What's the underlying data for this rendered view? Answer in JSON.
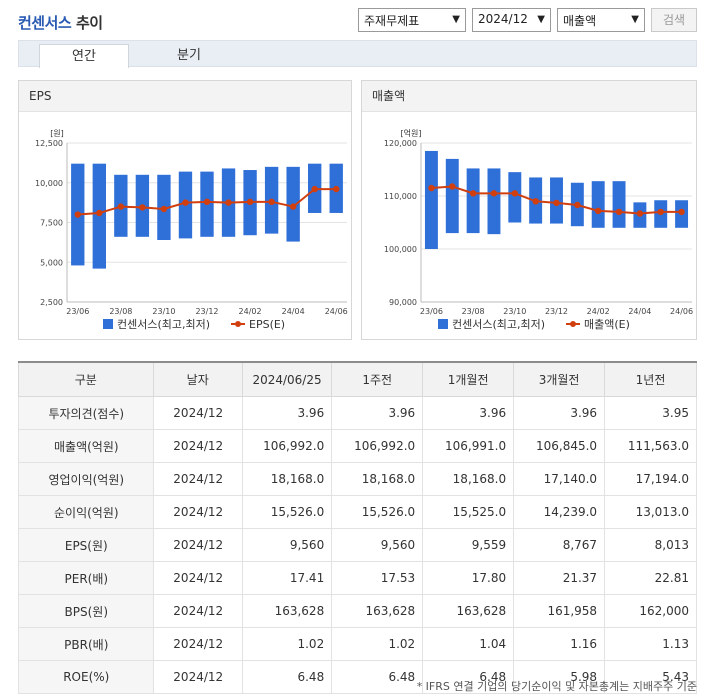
{
  "header": {
    "title_main": "컨센서스",
    "title_sub": "추이",
    "select_type": "주재무제표",
    "select_period": "2024/12",
    "select_metric": "매출액",
    "search_label": "검색"
  },
  "tabs": [
    {
      "label": "연간"
    },
    {
      "label": "분기"
    }
  ],
  "colors": {
    "bar": "#2f6fd8",
    "line": "#d23f0f",
    "accent": "#2a5bb3"
  },
  "charts": [
    {
      "panel_title": "EPS",
      "unit": "[원]",
      "chart_data": {
        "type": "bar",
        "title": "",
        "ylim": [
          2500,
          12500
        ],
        "yticks": [
          "12,500",
          "10,000",
          "7,500",
          "5,000",
          "2,500"
        ],
        "ytick_values": [
          12500,
          10000,
          7500,
          5000,
          2500
        ],
        "xlabels": [
          "23/06",
          "23/08",
          "23/10",
          "23/12",
          "24/02",
          "24/04",
          "24/06"
        ],
        "series": [
          {
            "name": "컨센서스(최고,최저)",
            "type": "range_bar",
            "high": [
              11200,
              11200,
              10500,
              10500,
              10500,
              10700,
              10700,
              10900,
              10800,
              11000,
              11000,
              11200,
              11200
            ],
            "low": [
              4800,
              4600,
              6600,
              6600,
              6400,
              6500,
              6600,
              6600,
              6700,
              6800,
              6300,
              8100,
              8100
            ]
          },
          {
            "name": "EPS(E)",
            "type": "line",
            "values": [
              8000,
              8100,
              8500,
              8450,
              8350,
              8750,
              8800,
              8750,
              8800,
              8800,
              8500,
              9600,
              9600
            ]
          }
        ],
        "legend": "bottom"
      }
    },
    {
      "panel_title": "매출액",
      "unit": "[억원]",
      "chart_data": {
        "type": "bar",
        "title": "",
        "ylim": [
          90000,
          120000
        ],
        "yticks": [
          "120,000",
          "110,000",
          "100,000",
          "90,000"
        ],
        "ytick_values": [
          120000,
          110000,
          100000,
          90000
        ],
        "xlabels": [
          "23/06",
          "23/08",
          "23/10",
          "23/12",
          "24/02",
          "24/04",
          "24/06"
        ],
        "series": [
          {
            "name": "컨센서스(최고,최저)",
            "type": "range_bar",
            "high": [
              118500,
              117000,
              115200,
              115200,
              114500,
              113500,
              113500,
              112500,
              112800,
              112800,
              108800,
              109200,
              109200
            ],
            "low": [
              100000,
              103000,
              103000,
              102800,
              105000,
              104800,
              104800,
              104300,
              104000,
              104000,
              104000,
              104000,
              104000
            ],
            "x": [
              0,
              1,
              2,
              3,
              4,
              5,
              6,
              7,
              8,
              9,
              10,
              11,
              12
            ]
          },
          {
            "name": "매출액(E)",
            "type": "line",
            "values": [
              111500,
              111800,
              110500,
              110500,
              110500,
              109000,
              108700,
              108300,
              107200,
              107000,
              106700,
              107000,
              107000
            ]
          }
        ],
        "legend": "bottom"
      }
    }
  ],
  "table": {
    "headers": [
      "구분",
      "날자",
      "2024/06/25",
      "1주전",
      "1개월전",
      "3개월전",
      "1년전"
    ],
    "rows": [
      [
        "투자의견(점수)",
        "2024/12",
        "3.96",
        "3.96",
        "3.96",
        "3.96",
        "3.95"
      ],
      [
        "매출액(억원)",
        "2024/12",
        "106,992.0",
        "106,992.0",
        "106,991.0",
        "106,845.0",
        "111,563.0"
      ],
      [
        "영업이익(억원)",
        "2024/12",
        "18,168.0",
        "18,168.0",
        "18,168.0",
        "17,140.0",
        "17,194.0"
      ],
      [
        "순이익(억원)",
        "2024/12",
        "15,526.0",
        "15,526.0",
        "15,525.0",
        "14,239.0",
        "13,013.0"
      ],
      [
        "EPS(원)",
        "2024/12",
        "9,560",
        "9,560",
        "9,559",
        "8,767",
        "8,013"
      ],
      [
        "PER(배)",
        "2024/12",
        "17.41",
        "17.53",
        "17.80",
        "21.37",
        "22.81"
      ],
      [
        "BPS(원)",
        "2024/12",
        "163,628",
        "163,628",
        "163,628",
        "161,958",
        "162,000"
      ],
      [
        "PBR(배)",
        "2024/12",
        "1.02",
        "1.02",
        "1.04",
        "1.16",
        "1.13"
      ],
      [
        "ROE(%)",
        "2024/12",
        "6.48",
        "6.48",
        "6.48",
        "5.98",
        "5.43"
      ]
    ]
  },
  "footnote": "* IFRS 연결 기업의 당기순이익 및 자본총계는 지배주주 기준"
}
